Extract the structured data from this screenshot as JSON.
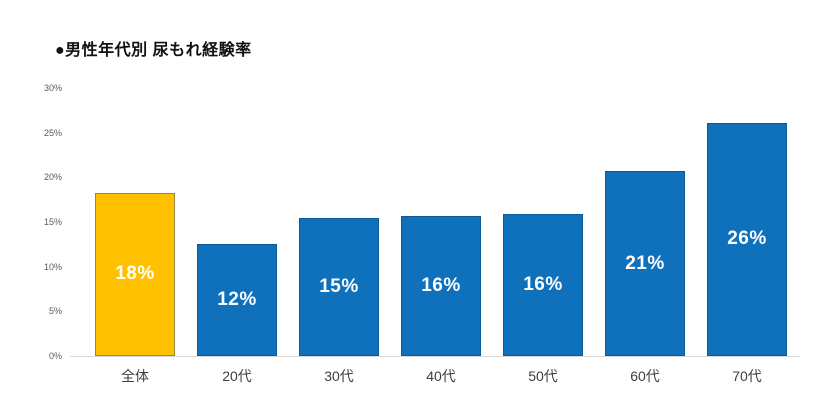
{
  "title": "●男性年代別 尿もれ経験率",
  "colors": {
    "background": "#FFFFFF",
    "highlight_fill": "#FFC000",
    "highlight_border": "#99893E",
    "bar_fill": "#0F70BC",
    "bar_border": "#0B5A97",
    "axis_line": "#D9D9D9",
    "ytick_text": "#595959",
    "xtick_text": "#3F3F3F",
    "value_label_text": "#FFFFFF"
  },
  "chart_data": {
    "type": "bar",
    "title": "●男性年代別 尿もれ経験率",
    "categories": [
      "全体",
      "20代",
      "30代",
      "40代",
      "50代",
      "60代",
      "70代"
    ],
    "values": [
      18.3,
      12.5,
      15.5,
      15.7,
      15.9,
      20.7,
      26.1
    ],
    "labels": [
      "18%",
      "12%",
      "15%",
      "16%",
      "16%",
      "21%",
      "26%"
    ],
    "highlight_index": 0,
    "xlabel": "",
    "ylabel": "",
    "ylim": [
      0,
      30
    ],
    "yticks": [
      0,
      5,
      10,
      15,
      20,
      25,
      30
    ],
    "ytick_labels": [
      "0%",
      "5%",
      "10%",
      "15%",
      "20%",
      "25%",
      "30%"
    ],
    "grid": false,
    "legend_position": "none"
  }
}
